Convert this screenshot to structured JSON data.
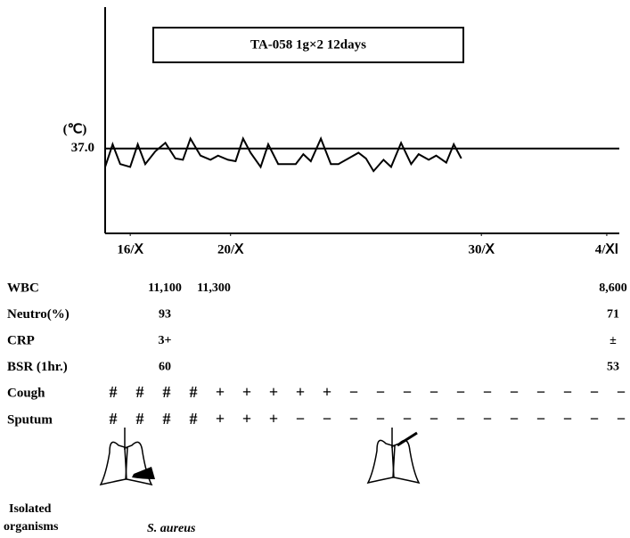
{
  "chart_data": {
    "type": "line",
    "annotation": "TA-058  1g×2   12days",
    "y_label": "(℃)",
    "x": [
      -1.0,
      -0.7,
      -0.4,
      0.0,
      0.3,
      0.6,
      1.0,
      1.4,
      1.8,
      2.1,
      2.4,
      2.8,
      3.2,
      3.5,
      3.9,
      4.2,
      4.5,
      4.8,
      5.2,
      5.5,
      5.9,
      6.3,
      6.6,
      6.9,
      7.2,
      7.6,
      8.0,
      8.3,
      8.7,
      9.1,
      9.4,
      9.7,
      10.1,
      10.4,
      10.8,
      11.2,
      11.5,
      11.9,
      12.2,
      12.6,
      12.9,
      13.2
    ],
    "values": [
      36.87,
      37.03,
      36.89,
      36.87,
      37.03,
      36.89,
      36.98,
      37.04,
      36.93,
      36.92,
      37.07,
      36.95,
      36.92,
      36.95,
      36.92,
      36.91,
      37.07,
      36.97,
      36.87,
      37.03,
      36.89,
      36.89,
      36.89,
      36.96,
      36.91,
      37.07,
      36.89,
      36.89,
      36.93,
      36.97,
      36.93,
      36.84,
      36.92,
      36.87,
      37.04,
      36.89,
      36.96,
      36.92,
      36.95,
      36.9,
      37.03,
      36.93
    ],
    "color": "#000000",
    "xlim": [
      -1,
      19.5
    ],
    "xticks": [
      {
        "value": 0,
        "label": "16/Ⅹ"
      },
      {
        "value": 4,
        "label": "20/Ⅹ"
      },
      {
        "value": 14,
        "label": "30/Ⅹ"
      },
      {
        "value": 19,
        "label": "4/ⅩⅠ"
      }
    ],
    "ylim": [
      36.4,
      38.0
    ],
    "yticks": [
      {
        "value": 37,
        "label": "37.0"
      }
    ],
    "grid": true
  },
  "labs": [
    {
      "label": "WBC",
      "cells": [
        "11,100",
        "11,300",
        "8,600"
      ]
    },
    {
      "label": "Neutro(%)",
      "cells": [
        "93",
        null,
        "71"
      ]
    },
    {
      "label": "CRP",
      "cells": [
        "3+",
        null,
        "±"
      ]
    },
    {
      "label": "BSR (1hr.)",
      "cells": [
        "60",
        null,
        "53"
      ]
    }
  ],
  "symptoms": [
    {
      "label": "Cough",
      "marks": [
        "#",
        "#",
        "#",
        "#",
        "+",
        "+",
        "+",
        "+",
        "+",
        "−",
        "−",
        "−",
        "−",
        "−",
        "−",
        "−",
        "−",
        "−",
        "−",
        "−"
      ]
    },
    {
      "label": "Sputum",
      "marks": [
        "#",
        "#",
        "#",
        "#",
        "+",
        "+",
        "+",
        "−",
        "−",
        "−",
        "−",
        "−",
        "−",
        "−",
        "−",
        "−",
        "−",
        "−",
        "−",
        "−"
      ]
    }
  ],
  "organisms": {
    "label_line1": "Isolated",
    "label_line2": "organisms",
    "value": "S. aureus"
  }
}
